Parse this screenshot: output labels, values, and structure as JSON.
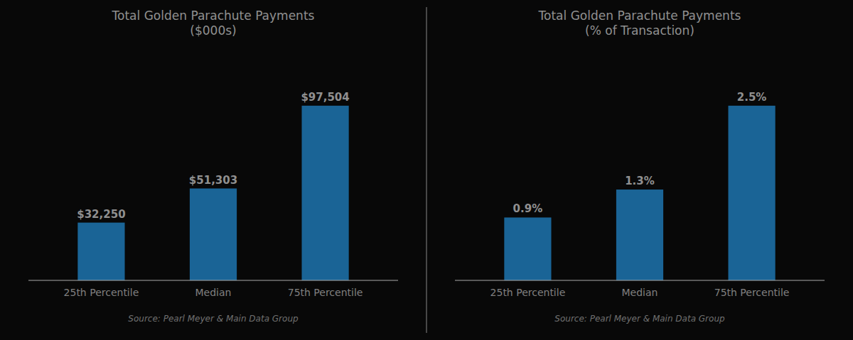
{
  "chart_data": [
    {
      "type": "bar",
      "title": "Total Golden Parachute Payments\n($000s)",
      "categories": [
        "25th Percentile",
        "Median",
        "75th Percentile"
      ],
      "values": [
        32250,
        51303,
        97504
      ],
      "value_labels": [
        "$32,250",
        "$51,303",
        "$97,504"
      ],
      "color": "#1A6496",
      "ylim": [
        0,
        124805.12
      ],
      "data_labels": true,
      "tick_labels": "x",
      "grid": false,
      "annotations": [
        "Source: Pearl Meyer & Main Data Group"
      ]
    },
    {
      "type": "bar",
      "title": "Total Golden Parachute Payments\n(% of Transaction)",
      "categories": [
        "25th Percentile",
        "Median",
        "75th Percentile"
      ],
      "values": [
        0.9,
        1.3,
        2.5
      ],
      "value_labels": [
        "0.9%",
        "1.3%",
        "2.5%"
      ],
      "color": "#1A6496",
      "ylim": [
        0,
        3.2
      ],
      "data_labels": true,
      "tick_labels": "x",
      "grid": false,
      "annotations": [
        "Source: Pearl Meyer & Main Data Group"
      ]
    }
  ]
}
